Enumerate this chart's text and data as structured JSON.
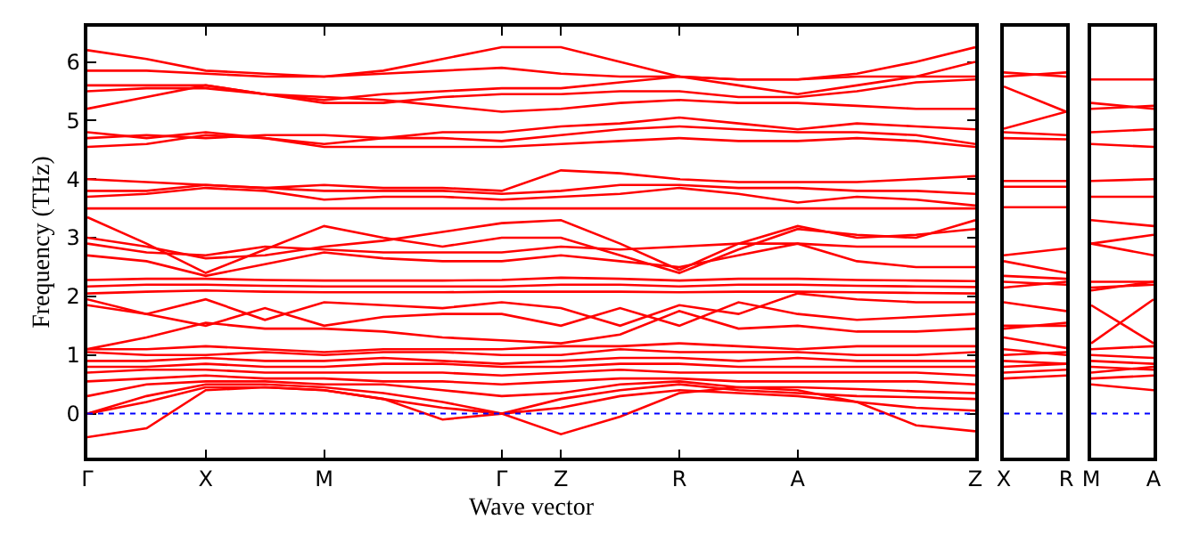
{
  "chart_data": [
    {
      "type": "line",
      "xlabel": "Wave vector",
      "ylabel": "Frequency (THz)",
      "line_style": "solid",
      "ylim": [
        -0.75,
        6.6
      ],
      "yticks": [
        0,
        1,
        2,
        3,
        4,
        5,
        6
      ],
      "categories": [
        "Γ",
        null,
        "X",
        null,
        "M",
        null,
        null,
        "Γ",
        "Z",
        null,
        "R",
        null,
        "A",
        null,
        null,
        "Z"
      ],
      "ref_lines": [
        {
          "axis": "y",
          "value": 0,
          "color": "#0000ff",
          "line_style": "dotted"
        }
      ],
      "series": [
        {
          "color": "#ff0000",
          "values": [
            6.2,
            6.05,
            5.85,
            5.8,
            5.75,
            5.85,
            6.05,
            6.25,
            6.25,
            6.0,
            5.75,
            5.7,
            5.7,
            5.8,
            6.0,
            6.25
          ]
        },
        {
          "color": "#ff0000",
          "values": [
            5.85,
            5.85,
            5.8,
            5.75,
            5.75,
            5.8,
            5.85,
            5.9,
            5.8,
            5.75,
            5.75,
            5.6,
            5.45,
            5.6,
            5.75,
            6.0
          ]
        },
        {
          "color": "#ff0000",
          "values": [
            5.6,
            5.6,
            5.6,
            5.45,
            5.35,
            5.45,
            5.5,
            5.55,
            5.55,
            5.65,
            5.75,
            5.7,
            5.7,
            5.75,
            5.75,
            5.75
          ]
        },
        {
          "color": "#ff0000",
          "values": [
            5.5,
            5.55,
            5.55,
            5.45,
            5.3,
            5.3,
            5.4,
            5.45,
            5.45,
            5.5,
            5.5,
            5.4,
            5.4,
            5.5,
            5.65,
            5.7
          ]
        },
        {
          "color": "#ff0000",
          "values": [
            5.2,
            5.4,
            5.6,
            5.45,
            5.4,
            5.35,
            5.25,
            5.15,
            5.2,
            5.3,
            5.35,
            5.3,
            5.3,
            5.25,
            5.2,
            5.2
          ]
        },
        {
          "color": "#ff0000",
          "values": [
            4.8,
            4.7,
            4.8,
            4.7,
            4.6,
            4.7,
            4.8,
            4.8,
            4.9,
            4.95,
            5.05,
            4.95,
            4.85,
            4.95,
            4.9,
            4.85
          ]
        },
        {
          "color": "#ff0000",
          "values": [
            4.7,
            4.75,
            4.7,
            4.75,
            4.75,
            4.7,
            4.7,
            4.65,
            4.75,
            4.85,
            4.9,
            4.85,
            4.8,
            4.8,
            4.75,
            4.6
          ]
        },
        {
          "color": "#ff0000",
          "values": [
            4.55,
            4.6,
            4.75,
            4.7,
            4.55,
            4.55,
            4.55,
            4.55,
            4.6,
            4.65,
            4.7,
            4.65,
            4.65,
            4.7,
            4.65,
            4.55
          ]
        },
        {
          "color": "#ff0000",
          "values": [
            4.0,
            3.95,
            3.9,
            3.85,
            3.9,
            3.85,
            3.85,
            3.8,
            4.15,
            4.1,
            4.0,
            3.95,
            3.95,
            3.95,
            4.0,
            4.05
          ]
        },
        {
          "color": "#ff0000",
          "values": [
            3.8,
            3.8,
            3.9,
            3.85,
            3.8,
            3.8,
            3.8,
            3.75,
            3.8,
            3.9,
            3.9,
            3.85,
            3.85,
            3.8,
            3.8,
            3.75
          ]
        },
        {
          "color": "#ff0000",
          "values": [
            3.7,
            3.75,
            3.85,
            3.8,
            3.65,
            3.7,
            3.7,
            3.65,
            3.7,
            3.75,
            3.85,
            3.75,
            3.6,
            3.7,
            3.65,
            3.55
          ]
        },
        {
          "color": "#ff0000",
          "values": [
            3.5,
            3.5,
            3.5,
            3.5,
            3.5,
            3.5,
            3.5,
            3.5,
            3.5,
            3.5,
            3.5,
            3.5,
            3.5,
            3.5,
            3.5,
            3.5
          ]
        },
        {
          "color": "#ff0000",
          "values": [
            3.35,
            2.9,
            2.4,
            2.8,
            3.2,
            3.0,
            2.85,
            3.0,
            3.0,
            2.7,
            2.4,
            2.8,
            3.15,
            3.05,
            3.0,
            3.3
          ]
        },
        {
          "color": "#ff0000",
          "values": [
            3.0,
            2.85,
            2.65,
            2.7,
            2.85,
            2.95,
            3.1,
            3.25,
            3.3,
            2.9,
            2.45,
            2.9,
            3.2,
            3.0,
            3.05,
            3.15
          ]
        },
        {
          "color": "#ff0000",
          "values": [
            2.9,
            2.75,
            2.7,
            2.85,
            2.8,
            2.75,
            2.75,
            2.75,
            2.85,
            2.8,
            2.85,
            2.9,
            2.9,
            2.85,
            2.85,
            2.85
          ]
        },
        {
          "color": "#ff0000",
          "values": [
            2.7,
            2.6,
            2.35,
            2.55,
            2.75,
            2.65,
            2.6,
            2.6,
            2.7,
            2.6,
            2.5,
            2.7,
            2.9,
            2.6,
            2.5,
            2.5
          ]
        },
        {
          "color": "#ff0000",
          "values": [
            2.28,
            2.3,
            2.3,
            2.28,
            2.27,
            2.27,
            2.27,
            2.28,
            2.32,
            2.3,
            2.27,
            2.3,
            2.3,
            2.28,
            2.27,
            2.26
          ]
        },
        {
          "color": "#ff0000",
          "values": [
            2.17,
            2.2,
            2.2,
            2.18,
            2.17,
            2.17,
            2.17,
            2.17,
            2.2,
            2.2,
            2.17,
            2.2,
            2.2,
            2.18,
            2.17,
            2.16
          ]
        },
        {
          "color": "#ff0000",
          "values": [
            2.05,
            2.08,
            2.1,
            2.08,
            2.07,
            2.07,
            2.07,
            2.08,
            2.08,
            2.08,
            2.07,
            2.08,
            2.08,
            2.07,
            2.06,
            2.05
          ]
        },
        {
          "color": "#ff0000",
          "values": [
            1.95,
            1.7,
            1.95,
            1.6,
            1.9,
            1.85,
            1.8,
            1.9,
            1.8,
            1.5,
            1.85,
            1.7,
            2.05,
            1.95,
            1.9,
            1.9
          ]
        },
        {
          "color": "#ff0000",
          "values": [
            1.85,
            1.7,
            1.5,
            1.8,
            1.5,
            1.65,
            1.7,
            1.7,
            1.5,
            1.8,
            1.5,
            1.9,
            1.7,
            1.6,
            1.65,
            1.7
          ]
        },
        {
          "color": "#ff0000",
          "values": [
            1.1,
            1.3,
            1.55,
            1.45,
            1.45,
            1.4,
            1.3,
            1.25,
            1.2,
            1.35,
            1.75,
            1.45,
            1.5,
            1.4,
            1.4,
            1.45
          ]
        },
        {
          "color": "#ff0000",
          "values": [
            1.1,
            1.1,
            1.15,
            1.1,
            1.05,
            1.1,
            1.1,
            1.1,
            1.15,
            1.15,
            1.2,
            1.15,
            1.1,
            1.15,
            1.15,
            1.15
          ]
        },
        {
          "color": "#ff0000",
          "values": [
            1.05,
            1.0,
            1.0,
            1.05,
            1.0,
            1.05,
            1.05,
            1.0,
            1.0,
            1.1,
            1.05,
            1.05,
            1.05,
            1.0,
            1.0,
            1.05
          ]
        },
        {
          "color": "#ff0000",
          "values": [
            0.9,
            0.9,
            0.95,
            0.9,
            0.9,
            0.95,
            0.9,
            0.85,
            0.9,
            0.95,
            0.95,
            0.9,
            0.95,
            0.9,
            0.9,
            0.9
          ]
        },
        {
          "color": "#ff0000",
          "values": [
            0.8,
            0.8,
            0.85,
            0.8,
            0.8,
            0.85,
            0.85,
            0.8,
            0.8,
            0.85,
            0.85,
            0.8,
            0.8,
            0.8,
            0.8,
            0.8
          ]
        },
        {
          "color": "#ff0000",
          "values": [
            0.7,
            0.75,
            0.75,
            0.7,
            0.7,
            0.7,
            0.7,
            0.65,
            0.7,
            0.75,
            0.7,
            0.7,
            0.7,
            0.7,
            0.7,
            0.65
          ]
        },
        {
          "color": "#ff0000",
          "values": [
            0.55,
            0.6,
            0.65,
            0.6,
            0.6,
            0.55,
            0.55,
            0.5,
            0.55,
            0.6,
            0.6,
            0.55,
            0.55,
            0.55,
            0.55,
            0.5
          ]
        },
        {
          "color": "#ff0000",
          "values": [
            0.3,
            0.5,
            0.55,
            0.55,
            0.5,
            0.5,
            0.4,
            0.3,
            0.35,
            0.5,
            0.55,
            0.45,
            0.45,
            0.42,
            0.38,
            0.35
          ]
        },
        {
          "color": "#ff0000",
          "values": [
            0.0,
            0.3,
            0.5,
            0.5,
            0.45,
            0.35,
            0.2,
            0.0,
            0.25,
            0.4,
            0.5,
            0.4,
            0.35,
            0.3,
            0.28,
            0.25
          ]
        },
        {
          "color": "#ff0000",
          "values": [
            0.0,
            0.2,
            0.45,
            0.45,
            0.4,
            0.25,
            0.1,
            0.0,
            0.1,
            0.3,
            0.4,
            0.35,
            0.3,
            0.2,
            0.1,
            0.05
          ]
        },
        {
          "color": "#ff0000",
          "values": [
            -0.4,
            -0.25,
            0.4,
            0.45,
            0.4,
            0.25,
            -0.1,
            0.0,
            -0.35,
            -0.05,
            0.35,
            0.45,
            0.4,
            0.2,
            -0.2,
            -0.3
          ]
        }
      ]
    },
    {
      "type": "line",
      "line_style": "solid",
      "tick_labels": "x",
      "ylim": [
        -0.75,
        6.6
      ],
      "categories": [
        "X",
        "R"
      ],
      "ref_lines": [
        {
          "axis": "y",
          "value": 0,
          "color": "#0000ff",
          "line_style": "dotted"
        }
      ],
      "series": [
        {
          "color": "#ff0000",
          "values": [
            5.82,
            5.75
          ]
        },
        {
          "color": "#ff0000",
          "values": [
            5.75,
            5.82
          ]
        },
        {
          "color": "#ff0000",
          "values": [
            5.58,
            5.15
          ]
        },
        {
          "color": "#ff0000",
          "values": [
            4.86,
            5.15
          ]
        },
        {
          "color": "#ff0000",
          "values": [
            4.8,
            4.75
          ]
        },
        {
          "color": "#ff0000",
          "values": [
            4.7,
            4.68
          ]
        },
        {
          "color": "#ff0000",
          "values": [
            3.97,
            3.97
          ]
        },
        {
          "color": "#ff0000",
          "values": [
            3.87,
            3.87
          ]
        },
        {
          "color": "#ff0000",
          "values": [
            3.52,
            3.52
          ]
        },
        {
          "color": "#ff0000",
          "values": [
            2.7,
            2.82
          ]
        },
        {
          "color": "#ff0000",
          "values": [
            2.6,
            2.4
          ]
        },
        {
          "color": "#ff0000",
          "values": [
            2.35,
            2.3
          ]
        },
        {
          "color": "#ff0000",
          "values": [
            2.25,
            2.2
          ]
        },
        {
          "color": "#ff0000",
          "values": [
            2.15,
            2.25
          ]
        },
        {
          "color": "#ff0000",
          "values": [
            1.9,
            1.75
          ]
        },
        {
          "color": "#ff0000",
          "values": [
            1.5,
            1.5
          ]
        },
        {
          "color": "#ff0000",
          "values": [
            1.45,
            1.55
          ]
        },
        {
          "color": "#ff0000",
          "values": [
            1.3,
            1.12
          ]
        },
        {
          "color": "#ff0000",
          "values": [
            1.1,
            1.0
          ]
        },
        {
          "color": "#ff0000",
          "values": [
            1.0,
            1.05
          ]
        },
        {
          "color": "#ff0000",
          "values": [
            0.9,
            0.85
          ]
        },
        {
          "color": "#ff0000",
          "values": [
            0.8,
            0.85
          ]
        },
        {
          "color": "#ff0000",
          "values": [
            0.7,
            0.75
          ]
        },
        {
          "color": "#ff0000",
          "values": [
            0.6,
            0.65
          ]
        }
      ]
    },
    {
      "type": "line",
      "line_style": "solid",
      "tick_labels": "x",
      "ylim": [
        -0.75,
        6.6
      ],
      "categories": [
        "M",
        "A"
      ],
      "ref_lines": [
        {
          "axis": "y",
          "value": 0,
          "color": "#0000ff",
          "line_style": "dotted"
        }
      ],
      "series": [
        {
          "color": "#ff0000",
          "values": [
            5.7,
            5.7
          ]
        },
        {
          "color": "#ff0000",
          "values": [
            5.3,
            5.2
          ]
        },
        {
          "color": "#ff0000",
          "values": [
            5.2,
            5.25
          ]
        },
        {
          "color": "#ff0000",
          "values": [
            4.8,
            4.85
          ]
        },
        {
          "color": "#ff0000",
          "values": [
            4.6,
            4.55
          ]
        },
        {
          "color": "#ff0000",
          "values": [
            3.97,
            4.0
          ]
        },
        {
          "color": "#ff0000",
          "values": [
            3.7,
            3.7
          ]
        },
        {
          "color": "#ff0000",
          "values": [
            3.3,
            3.2
          ]
        },
        {
          "color": "#ff0000",
          "values": [
            2.9,
            3.05
          ]
        },
        {
          "color": "#ff0000",
          "values": [
            2.9,
            2.7
          ]
        },
        {
          "color": "#ff0000",
          "values": [
            2.25,
            2.25
          ]
        },
        {
          "color": "#ff0000",
          "values": [
            2.15,
            2.2
          ]
        },
        {
          "color": "#ff0000",
          "values": [
            2.1,
            2.25
          ]
        },
        {
          "color": "#ff0000",
          "values": [
            1.85,
            1.2
          ]
        },
        {
          "color": "#ff0000",
          "values": [
            1.2,
            1.95
          ]
        },
        {
          "color": "#ff0000",
          "values": [
            1.1,
            1.15
          ]
        },
        {
          "color": "#ff0000",
          "values": [
            1.0,
            0.95
          ]
        },
        {
          "color": "#ff0000",
          "values": [
            0.9,
            0.85
          ]
        },
        {
          "color": "#ff0000",
          "values": [
            0.8,
            0.75
          ]
        },
        {
          "color": "#ff0000",
          "values": [
            0.7,
            0.8
          ]
        },
        {
          "color": "#ff0000",
          "values": [
            0.6,
            0.65
          ]
        },
        {
          "color": "#ff0000",
          "values": [
            0.5,
            0.4
          ]
        }
      ]
    }
  ]
}
